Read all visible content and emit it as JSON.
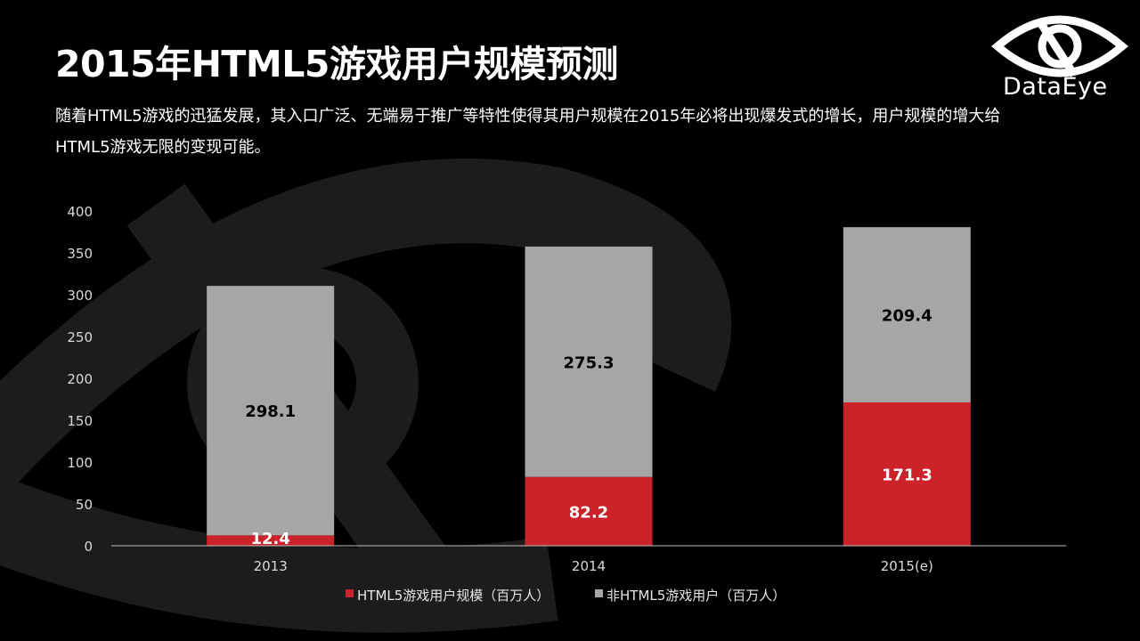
{
  "slide": {
    "title": "2015年HTML5游戏用户规模预测",
    "subtitle": "随着HTML5游戏的迅猛发展，其入口广泛、无端易于推广等特性使得其用户规模在2015年必将出现爆发式的增长，用户规模的增大给HTML5游戏无限的变现可能。",
    "logo_text": "DataEye"
  },
  "colors": {
    "background": "#000000",
    "html5_series": "#cc2229",
    "non_html5_series": "#a6a6a6",
    "axis": "#bfbfbf"
  },
  "chart_data": {
    "type": "bar",
    "stacked": true,
    "categories": [
      "2013",
      "2014",
      "2015(e)"
    ],
    "series": [
      {
        "name": "HTML5游戏用户规模（百万人）",
        "values": [
          12.4,
          82.2,
          171.3
        ],
        "color": "#cc2229",
        "label_color": "#ffffff"
      },
      {
        "name": "非HTML5游戏用户（百万人）",
        "values": [
          298.1,
          275.3,
          209.4
        ],
        "color": "#a6a6a6",
        "label_color": "#000000"
      }
    ],
    "data_labels": [
      [
        "12.4",
        "82.2",
        "171.3"
      ],
      [
        "298.1",
        "275.3",
        "209.4"
      ]
    ],
    "y_ticks": [
      "0",
      "50",
      "100",
      "150",
      "200",
      "250",
      "300",
      "350",
      "400"
    ],
    "ylim": [
      0,
      400
    ],
    "grid": false,
    "legend_position": "bottom"
  }
}
